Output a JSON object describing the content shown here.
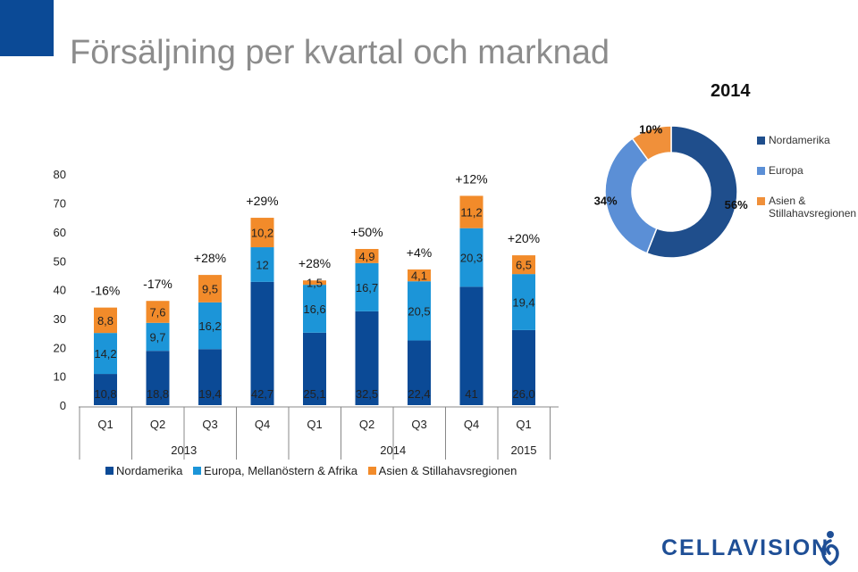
{
  "page": {
    "title": "Försäljning per kvartal och marknad",
    "logo_text": "CELLAVISION"
  },
  "chart_data": [
    {
      "type": "bar",
      "stacked": true,
      "categories": [
        "Q1",
        "Q2",
        "Q3",
        "Q4",
        "Q1",
        "Q2",
        "Q3",
        "Q4",
        "Q1"
      ],
      "year_groups": [
        {
          "label": "2013",
          "from": 0,
          "to": 3
        },
        {
          "label": "2014",
          "from": 4,
          "to": 7
        },
        {
          "label": "2015",
          "from": 8,
          "to": 8
        }
      ],
      "series": [
        {
          "name": "Nordamerika",
          "color": "#0b4a96",
          "values": [
            10.8,
            18.8,
            19.4,
            42.7,
            25.1,
            32.5,
            22.4,
            41,
            26.0
          ],
          "labels": [
            "10,8",
            "18,8",
            "19,4",
            "42,7",
            "25,1",
            "32,5",
            "22,4",
            "41",
            "26,0"
          ]
        },
        {
          "name": "Europa, Mellanöstern & Afrika",
          "color": "#1c95d8",
          "values": [
            14.2,
            9.7,
            16.2,
            12,
            16.6,
            16.7,
            20.5,
            20.3,
            19.4
          ],
          "labels": [
            "14,2",
            "9,7",
            "16,2",
            "12",
            "16,6",
            "16,7",
            "20,5",
            "20,3",
            "19,4"
          ]
        },
        {
          "name": "Asien & Stillahavsregionen",
          "color": "#f28b2a",
          "values": [
            8.8,
            7.6,
            9.5,
            10.2,
            1.5,
            4.9,
            4.1,
            11.2,
            6.5
          ],
          "labels": [
            "8,8",
            "7,6",
            "9,5",
            "10,2",
            "1,5",
            "4,9",
            "4,1",
            "11,2",
            "6,5"
          ]
        }
      ],
      "growth_labels": [
        "-16%",
        "-17%",
        "+28%",
        "+29%",
        "+28%",
        "+50%",
        "+4%",
        "+12%",
        "+20%"
      ],
      "y_ticks": [
        0,
        10,
        20,
        30,
        40,
        50,
        60,
        70,
        80
      ],
      "ylim": [
        0,
        80
      ],
      "grid": false,
      "legend_position": "bottom"
    },
    {
      "type": "pie",
      "donut": true,
      "title": "2014",
      "slices": [
        {
          "name": "Nordamerika",
          "value": 56,
          "label": "56%",
          "color": "#1f4e8c"
        },
        {
          "name": "Europa",
          "value": 34,
          "label": "34%",
          "color": "#5b8fd6"
        },
        {
          "name": "Asien & Stillahavsregionen",
          "value": 10,
          "label": "10%",
          "color": "#f0903a"
        }
      ],
      "legend_position": "right"
    }
  ]
}
